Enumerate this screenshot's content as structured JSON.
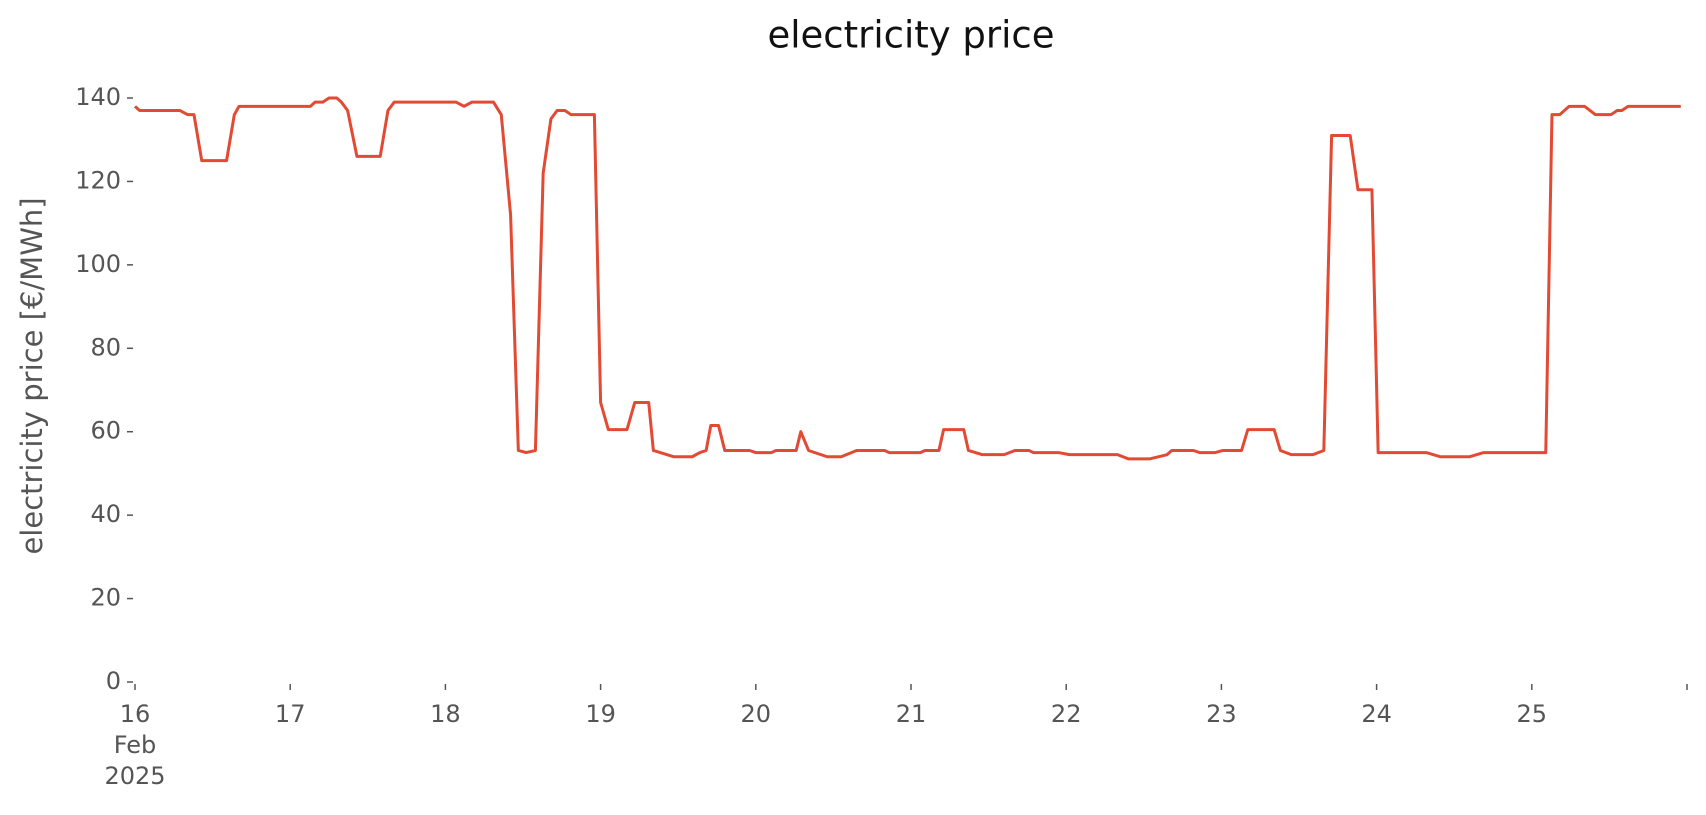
{
  "chart_data": {
    "type": "line",
    "title": "electricity price",
    "ylabel": "electricity price [€/MWh]",
    "x": [
      16.0,
      16.03,
      16.29,
      16.34,
      16.38,
      16.43,
      16.59,
      16.64,
      16.67,
      17.13,
      17.16,
      17.21,
      17.25,
      17.3,
      17.33,
      17.37,
      17.43,
      17.58,
      17.63,
      17.67,
      18.07,
      18.12,
      18.17,
      18.31,
      18.36,
      18.42,
      18.47,
      18.52,
      18.58,
      18.63,
      18.68,
      18.72,
      18.77,
      18.81,
      18.96,
      19.0,
      19.05,
      19.17,
      19.22,
      19.31,
      19.34,
      19.47,
      19.59,
      19.64,
      19.68,
      19.71,
      19.76,
      19.8,
      19.96,
      20.0,
      20.1,
      20.13,
      20.26,
      20.29,
      20.34,
      20.46,
      20.55,
      20.65,
      20.83,
      20.86,
      21.06,
      21.09,
      21.18,
      21.21,
      21.34,
      21.37,
      21.46,
      21.6,
      21.67,
      21.76,
      21.79,
      21.95,
      22.02,
      22.33,
      22.4,
      22.54,
      22.65,
      22.68,
      22.82,
      22.86,
      22.96,
      23.01,
      23.13,
      23.17,
      23.34,
      23.38,
      23.45,
      23.59,
      23.66,
      23.71,
      23.83,
      23.88,
      23.97,
      24.01,
      24.32,
      24.41,
      24.6,
      24.69,
      25.09,
      25.13,
      25.18,
      25.24,
      25.34,
      25.41,
      25.51,
      25.55,
      25.58,
      25.62,
      25.96
    ],
    "series": [
      {
        "name": "electricity price",
        "color": "#e24a33",
        "values": [
          138,
          137,
          137,
          136,
          136,
          125,
          125,
          136,
          138,
          138,
          139,
          139,
          140,
          140,
          139,
          137,
          126,
          126,
          137,
          139,
          139,
          138,
          139,
          139,
          136,
          112,
          55.5,
          55,
          55.5,
          122,
          135,
          137,
          137,
          136,
          136,
          67,
          60.5,
          60.5,
          67,
          67,
          55.5,
          54,
          54,
          55,
          55.5,
          61.5,
          61.5,
          55.5,
          55.5,
          55,
          55,
          55.5,
          55.5,
          60,
          55.5,
          54,
          54,
          55.5,
          55.5,
          55,
          55,
          55.5,
          55.5,
          60.5,
          60.5,
          55.5,
          54.5,
          54.5,
          55.5,
          55.5,
          55,
          55,
          54.5,
          54.5,
          53.5,
          53.5,
          54.5,
          55.5,
          55.5,
          55,
          55,
          55.5,
          55.5,
          60.5,
          60.5,
          55.5,
          54.5,
          54.5,
          55.5,
          131,
          131,
          118,
          118,
          55,
          55,
          54,
          54,
          55,
          55,
          136,
          136,
          138,
          138,
          136,
          136,
          137,
          137,
          138,
          138
        ]
      }
    ],
    "xlim": [
      16,
      26
    ],
    "xticks": [
      {
        "value": 16,
        "label": "16\nFeb\n2025"
      },
      17,
      18,
      19,
      20,
      21,
      22,
      23,
      24,
      25,
      {
        "value": 26,
        "label": null
      }
    ],
    "ylim": [
      0,
      140
    ],
    "yticks": [
      0,
      20,
      40,
      60,
      80,
      100,
      120,
      140
    ],
    "grid": false,
    "legend": false
  }
}
